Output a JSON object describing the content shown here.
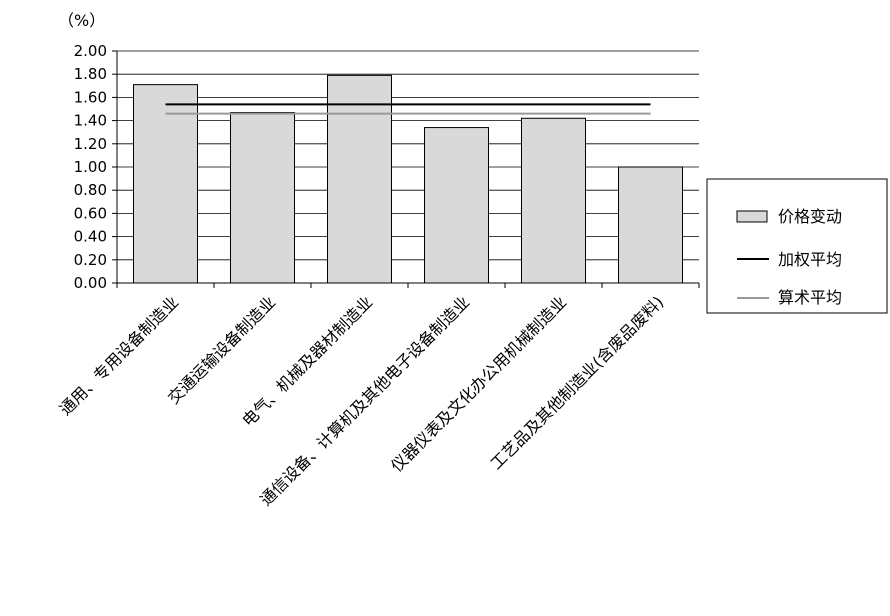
{
  "chart_data": {
    "type": "bar",
    "unit_label": "（%）",
    "categories": [
      "通用、专用设备制造业",
      "交通运输设备制造业",
      "电气、机械及器材制造业",
      "通信设备、计算机及其他电子设备制造业",
      "仪器仪表及文化办公用机械制造业",
      "工艺品及其他制造业(含废品废料)"
    ],
    "series": [
      {
        "name": "价格变动",
        "values": [
          1.71,
          1.47,
          1.79,
          1.34,
          1.42,
          1.0
        ],
        "color": "#d9d9d9"
      }
    ],
    "reference_lines": [
      {
        "name": "加权平均",
        "value": 1.54,
        "color": "#000000"
      },
      {
        "name": "算术平均",
        "value": 1.46,
        "color": "#999999"
      }
    ],
    "ylim": [
      0,
      2.0
    ],
    "yticks": [
      "0.00",
      "0.20",
      "0.40",
      "0.60",
      "0.80",
      "1.00",
      "1.20",
      "1.40",
      "1.60",
      "1.80",
      "2.00"
    ],
    "grid": true,
    "legend_position": "right"
  }
}
